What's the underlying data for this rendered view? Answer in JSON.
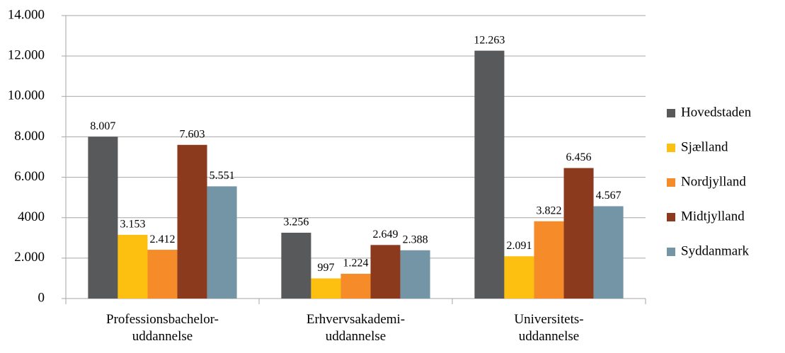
{
  "chart_data": {
    "type": "bar",
    "categories": [
      "Professionsbachelor-\nuddannelse",
      "Erhvervsakademi-\nuddannelse",
      "Universitets-\nuddannelse"
    ],
    "series": [
      {
        "name": "Hovedstaden",
        "color": "#58595b",
        "values": [
          8007,
          3256,
          12263
        ],
        "value_labels": [
          "8.007",
          "3.256",
          "12.263"
        ]
      },
      {
        "name": "Sjælland",
        "color": "#fdc010",
        "values": [
          3153,
          997,
          2091
        ],
        "value_labels": [
          "3.153",
          "997",
          "2.091"
        ]
      },
      {
        "name": "Nordjylland",
        "color": "#f68b2a",
        "values": [
          2412,
          1224,
          3822
        ],
        "value_labels": [
          "2.412",
          "1.224",
          "3.822"
        ]
      },
      {
        "name": "Midtjylland",
        "color": "#8b3a1e",
        "values": [
          7603,
          2649,
          6456
        ],
        "value_labels": [
          "7.603",
          "2.649",
          "6.456"
        ]
      },
      {
        "name": "Syddanmark",
        "color": "#7395a5",
        "values": [
          5551,
          2388,
          4567
        ],
        "value_labels": [
          "5.551",
          "2.388",
          "4.567"
        ]
      }
    ],
    "ylim": [
      0,
      14000
    ],
    "yticks": [
      0,
      {
        "value": 2000,
        "label": "2.000"
      },
      4000,
      {
        "value": 6000,
        "label": "6.000"
      },
      {
        "value": 8000,
        "label": "8.000"
      },
      {
        "value": 10000,
        "label": "10.000"
      },
      {
        "value": 12000,
        "label": "12.000"
      },
      {
        "value": 14000,
        "label": "14.000"
      }
    ],
    "grid": true,
    "legend": "right"
  }
}
